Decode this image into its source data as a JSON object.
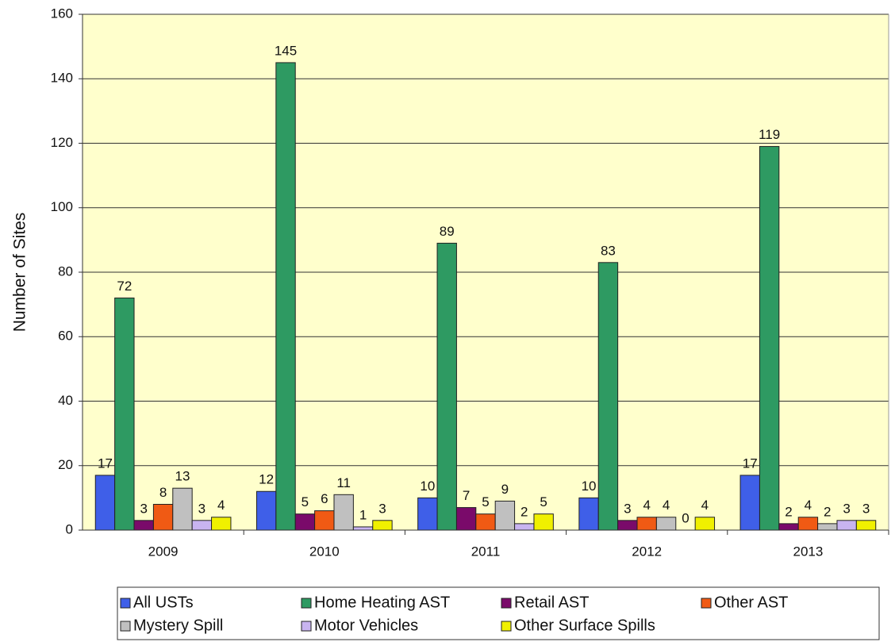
{
  "chart_data": {
    "type": "bar",
    "y_label": "Number of Sites",
    "categories": [
      "2009",
      "2010",
      "2011",
      "2012",
      "2013"
    ],
    "series": [
      {
        "name": "All USTs",
        "color": "#3f5fe8",
        "values": [
          17,
          12,
          10,
          10,
          17
        ]
      },
      {
        "name": "Home Heating AST",
        "color": "#2e9a62",
        "values": [
          72,
          145,
          89,
          83,
          119
        ]
      },
      {
        "name": "Retail AST",
        "color": "#7a0a6a",
        "values": [
          3,
          5,
          7,
          3,
          2
        ]
      },
      {
        "name": "Other AST",
        "color": "#f05a14",
        "values": [
          8,
          6,
          5,
          4,
          4
        ]
      },
      {
        "name": "Mystery Spill",
        "color": "#c0c0c0",
        "values": [
          13,
          11,
          9,
          4,
          2
        ]
      },
      {
        "name": "Motor Vehicles",
        "color": "#c8b4f0",
        "values": [
          3,
          1,
          2,
          0,
          3
        ]
      },
      {
        "name": "Other Surface Spills",
        "color": "#f0f000",
        "values": [
          4,
          3,
          5,
          4,
          3
        ]
      }
    ],
    "ylim": [
      0,
      160
    ],
    "yticks": [
      0,
      20,
      40,
      60,
      80,
      100,
      120,
      140,
      160
    ],
    "grid": true,
    "legend": "bottom",
    "plot_background": "#ffffcc"
  }
}
